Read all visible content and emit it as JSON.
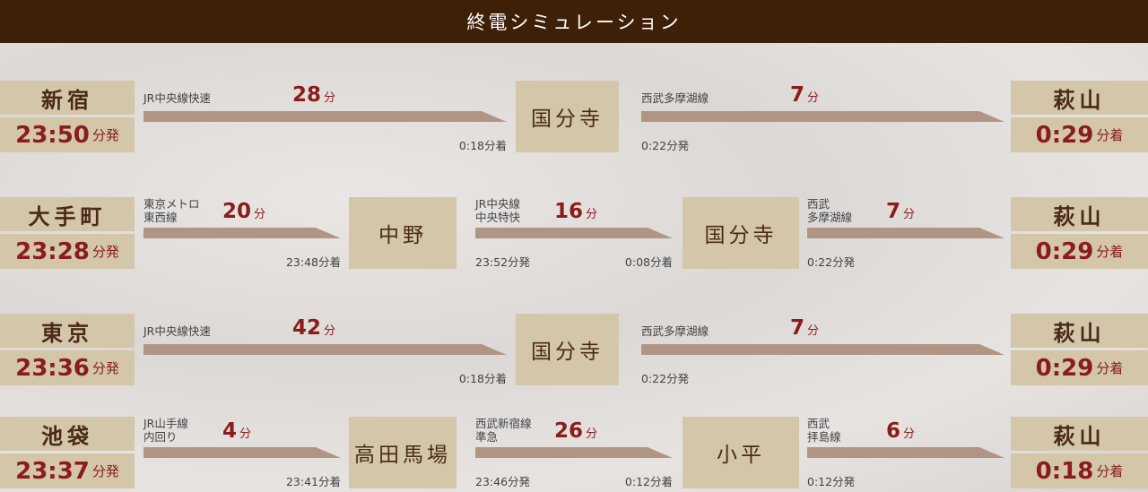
{
  "header": {
    "title": "終電シミュレーション"
  },
  "colors": {
    "header": "#3e1f08",
    "box": "#d3c6a9",
    "time": "#8b1c1c",
    "bar": "#b09585"
  },
  "routes": [
    {
      "origin": {
        "name": "新宿",
        "time": "23:50",
        "suffix": "分発"
      },
      "transfers": [
        "国分寺"
      ],
      "segments": [
        {
          "line": [
            "JR中央線快速"
          ],
          "minutes": "28",
          "unit": "分",
          "dep": "",
          "arr": "0:18分着"
        },
        {
          "line": [
            "西武多摩湖線"
          ],
          "minutes": "7",
          "unit": "分",
          "dep": "0:22分発",
          "arr": ""
        }
      ],
      "dest": {
        "name": "萩山",
        "time": "0:29",
        "suffix": "分着"
      }
    },
    {
      "origin": {
        "name": "大手町",
        "time": "23:28",
        "suffix": "分発"
      },
      "transfers": [
        "中野",
        "国分寺"
      ],
      "segments": [
        {
          "line": [
            "東京メトロ",
            "東西線"
          ],
          "minutes": "20",
          "unit": "分",
          "dep": "",
          "arr": "23:48分着"
        },
        {
          "line": [
            "JR中央線",
            "中央特快"
          ],
          "minutes": "16",
          "unit": "分",
          "dep": "23:52分発",
          "arr": "0:08分着"
        },
        {
          "line": [
            "西武",
            "多摩湖線"
          ],
          "minutes": "7",
          "unit": "分",
          "dep": "0:22分発",
          "arr": ""
        }
      ],
      "dest": {
        "name": "萩山",
        "time": "0:29",
        "suffix": "分着"
      }
    },
    {
      "origin": {
        "name": "東京",
        "time": "23:36",
        "suffix": "分発"
      },
      "transfers": [
        "国分寺"
      ],
      "segments": [
        {
          "line": [
            "JR中央線快速"
          ],
          "minutes": "42",
          "unit": "分",
          "dep": "",
          "arr": "0:18分着"
        },
        {
          "line": [
            "西武多摩湖線"
          ],
          "minutes": "7",
          "unit": "分",
          "dep": "0:22分発",
          "arr": ""
        }
      ],
      "dest": {
        "name": "萩山",
        "time": "0:29",
        "suffix": "分着"
      }
    },
    {
      "origin": {
        "name": "池袋",
        "time": "23:37",
        "suffix": "分発"
      },
      "transfers": [
        "高田馬場",
        "小平"
      ],
      "segments": [
        {
          "line": [
            "JR山手線",
            "内回り"
          ],
          "minutes": "4",
          "unit": "分",
          "dep": "",
          "arr": "23:41分着"
        },
        {
          "line": [
            "西武新宿線",
            "準急"
          ],
          "minutes": "26",
          "unit": "分",
          "dep": "23:46分発",
          "arr": "0:12分着"
        },
        {
          "line": [
            "西武",
            "拝島線"
          ],
          "minutes": "6",
          "unit": "分",
          "dep": "0:12分発",
          "arr": ""
        }
      ],
      "dest": {
        "name": "萩山",
        "time": "0:18",
        "suffix": "分着"
      }
    }
  ]
}
